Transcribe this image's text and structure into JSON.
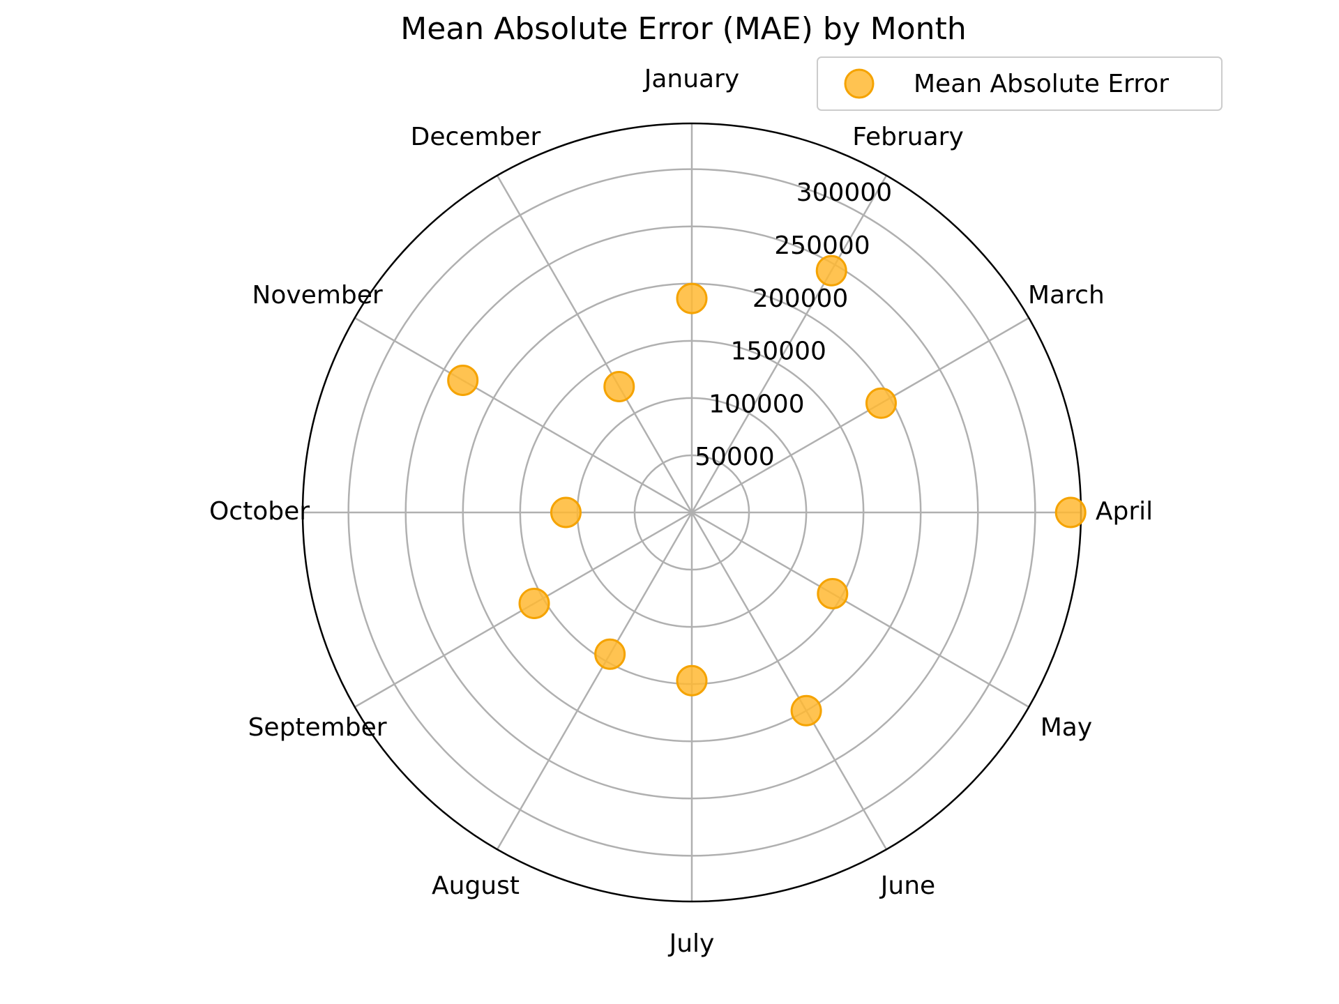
{
  "chart_data": {
    "type": "scatter",
    "projection": "polar",
    "title": "Mean Absolute Error (MAE) by Month",
    "categories": [
      "January",
      "February",
      "March",
      "April",
      "May",
      "June",
      "July",
      "August",
      "September",
      "October",
      "November",
      "December"
    ],
    "series": [
      {
        "name": "Mean Absolute Error",
        "values": [
          187000,
          244000,
          191000,
          331000,
          142000,
          200000,
          147000,
          143000,
          159000,
          110000,
          231000,
          127000
        ]
      }
    ],
    "radial_ticks": [
      50000,
      100000,
      150000,
      200000,
      250000,
      300000
    ],
    "rlim": [
      0,
      340000
    ],
    "grid": true,
    "legend_position": "top-right",
    "colors": {
      "marker_fill": "#FFB833",
      "marker_edge": "#F5A300",
      "grid": "#b0b0b0",
      "frame": "#000000"
    }
  }
}
